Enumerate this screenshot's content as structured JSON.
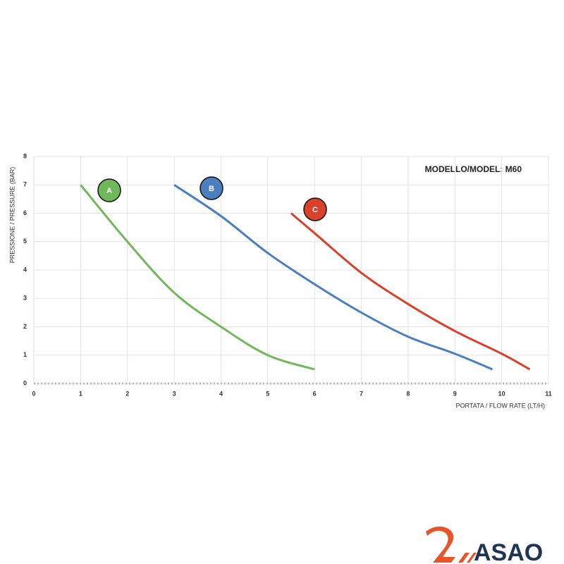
{
  "chart_data": {
    "type": "line",
    "title": "MODELLO/MODEL: M60",
    "x_label": "PORTATA / FLOW RATE (LT/H)",
    "y_label": "PRESSIONE / PRESSURE (BAR)",
    "series": [
      {
        "name": "A",
        "color": "#70b85a",
        "x": [
          1,
          2,
          3,
          4,
          5,
          6
        ],
        "values": [
          7,
          5,
          3.2,
          2,
          1,
          0.5
        ]
      },
      {
        "name": "B",
        "color": "#4a7fc0",
        "x": [
          3,
          4,
          5,
          6,
          7,
          8,
          9,
          9.8
        ],
        "values": [
          7,
          5.9,
          4.6,
          3.5,
          2.5,
          1.65,
          1.05,
          0.5
        ]
      },
      {
        "name": "C",
        "color": "#d9412b",
        "x": [
          5.5,
          6,
          7,
          8,
          9,
          10,
          10.6
        ],
        "values": [
          6,
          5.3,
          3.9,
          2.8,
          1.85,
          1.05,
          0.5
        ]
      }
    ],
    "xlim": [
      0,
      11
    ],
    "xticks": [
      0,
      1,
      2,
      3,
      4,
      5,
      6,
      7,
      8,
      9,
      10,
      11
    ],
    "ylim": [
      0,
      8
    ],
    "yticks": [
      0,
      1,
      2,
      3,
      4,
      5,
      6,
      7,
      8
    ],
    "grid": true
  },
  "logo": {
    "text": "ASAO"
  }
}
